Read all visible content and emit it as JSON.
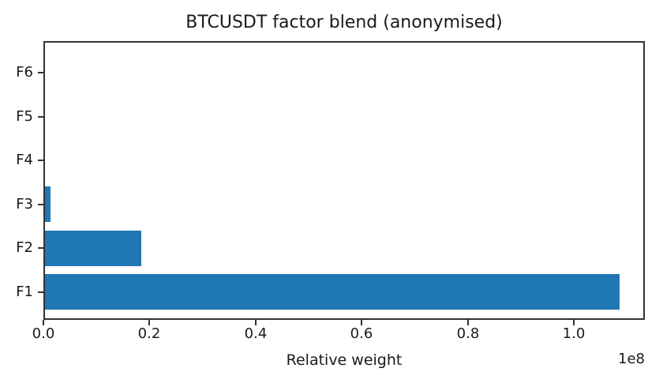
{
  "chart_data": {
    "type": "bar",
    "orientation": "horizontal",
    "title": "BTCUSDT factor blend (anonymised)",
    "xlabel": "Relative weight",
    "ylabel": "",
    "category_order": "top-to-bottom",
    "categories": [
      "F6",
      "F5",
      "F4",
      "F3",
      "F2",
      "F1"
    ],
    "values": [
      0,
      0,
      0,
      1050000,
      18200000,
      108400000
    ],
    "xlim": [
      0,
      113400000
    ],
    "x_ticks": {
      "values": [
        0,
        20000000,
        40000000,
        60000000,
        80000000,
        100000000
      ],
      "labels": [
        "0.0",
        "0.2",
        "0.4",
        "0.6",
        "0.8",
        "1.0"
      ]
    },
    "offset_label": "1e8",
    "bar_color": "#1f77b4",
    "grid": false,
    "legend": null
  }
}
